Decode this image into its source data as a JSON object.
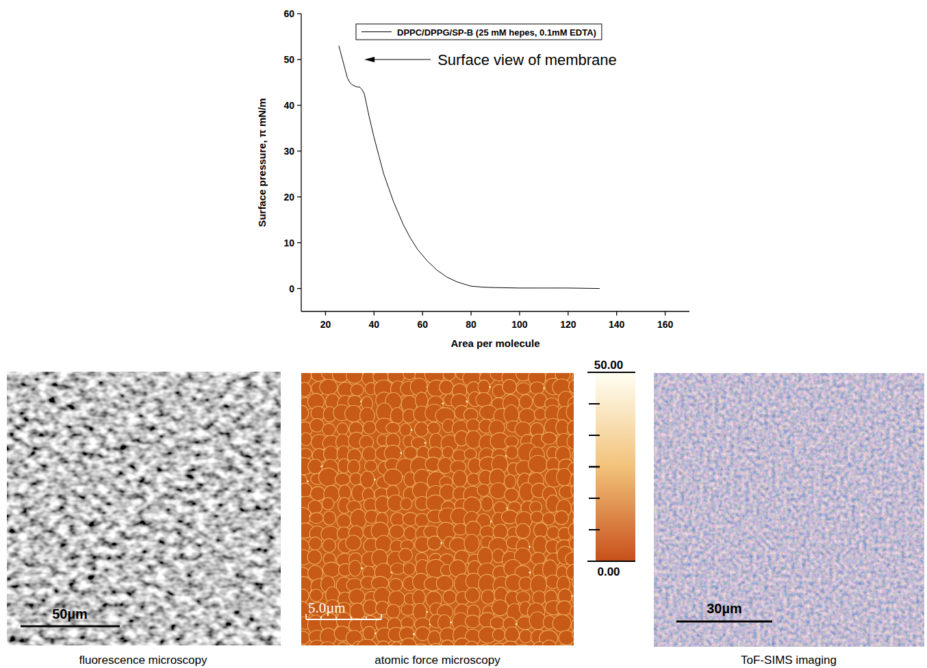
{
  "chart_data": {
    "type": "line",
    "x": [
      133,
      120,
      110,
      100,
      90,
      85,
      80,
      77,
      74,
      70,
      66,
      62,
      58,
      55,
      52,
      50,
      48,
      46,
      44,
      42,
      40,
      38,
      37,
      36,
      35,
      34,
      33,
      32,
      31,
      30,
      29,
      28,
      27,
      26,
      25.5
    ],
    "series": [
      {
        "name": "DPPC/DPPG/SP-B (25 mM hepes, 0.1mM EDTA)",
        "color": "#000000",
        "values": [
          0,
          0.1,
          0.1,
          0.1,
          0.2,
          0.3,
          0.5,
          1,
          1.5,
          2.5,
          4,
          6,
          8.5,
          11,
          14,
          16.5,
          19,
          22,
          25,
          29,
          33,
          37.5,
          40,
          42.5,
          43.5,
          44,
          44,
          44.2,
          44.5,
          45,
          46,
          48,
          50,
          52,
          53
        ]
      }
    ],
    "xlabel": "Area per molecule",
    "ylabel": "Surface pressure, π  mN/m",
    "xlim": [
      10,
      170
    ],
    "ylim": [
      -5,
      60
    ],
    "xticks": [
      20,
      40,
      60,
      80,
      100,
      120,
      140,
      160
    ],
    "yticks": [
      0,
      10,
      20,
      30,
      40,
      50,
      60
    ],
    "legend": "top-right",
    "annotations": [
      {
        "text": "Surface view of membrane",
        "x": 36,
        "y": 50
      }
    ]
  },
  "images": [
    {
      "caption": "fluorescence microscopy",
      "scale_bar": "50µm"
    },
    {
      "caption": "atomic force microscopy",
      "scale_bar": "5.0µm",
      "color_bar": {
        "range": [
          0,
          50
        ],
        "ticks": [
          {
            "value": 50,
            "label": "50.00"
          },
          {
            "value": 0,
            "label": "0.00"
          }
        ]
      }
    },
    {
      "caption": "ToF-SIMS imaging",
      "scale_bar": "30µm"
    }
  ]
}
